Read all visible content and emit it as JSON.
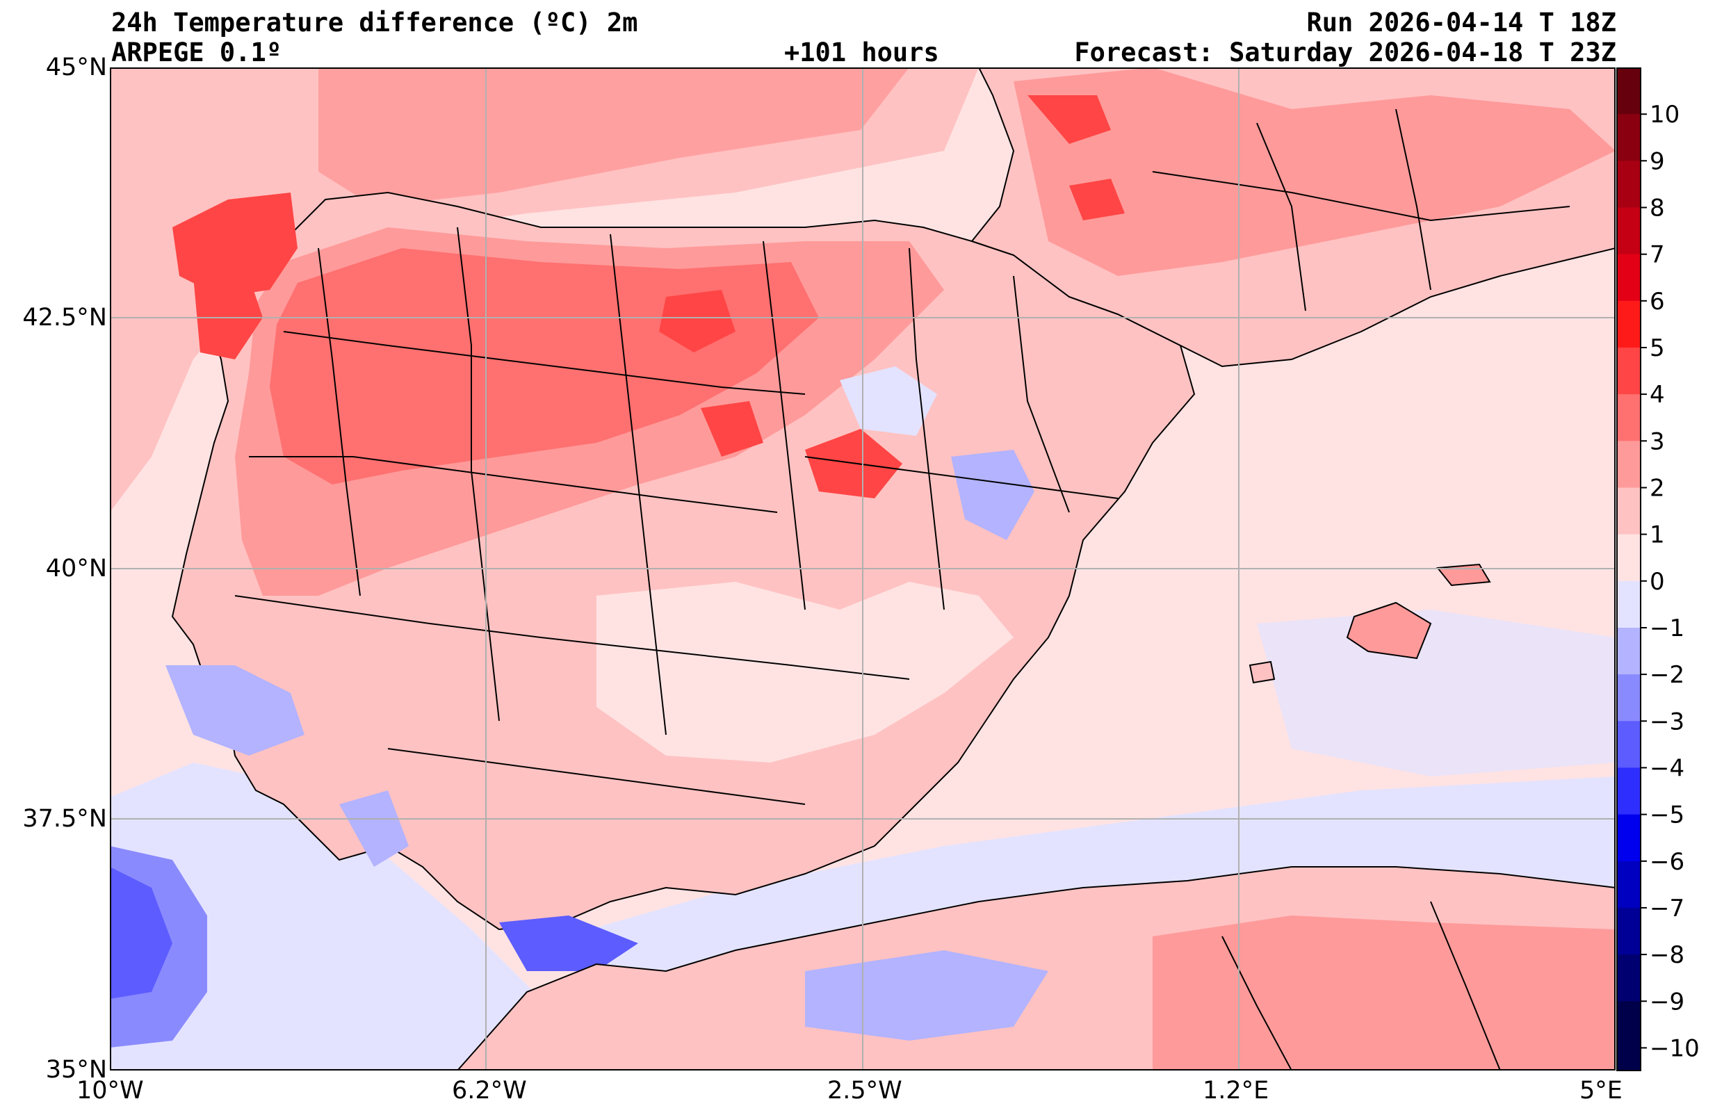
{
  "header": {
    "title": "24h Temperature difference (ºC) 2m",
    "model": "ARPEGE 0.1º",
    "lead_time": "+101 hours",
    "run": "Run 2026-04-14 T 18Z",
    "forecast": "Forecast: Saturday 2026-04-18 T 23Z"
  },
  "axes": {
    "lat_labels": [
      "45°N",
      "42.5°N",
      "40°N",
      "37.5°N",
      "35°N"
    ],
    "lon_labels": [
      "10°W",
      "6.2°W",
      "2.5°W",
      "1.2°E",
      "5°E"
    ]
  },
  "colorbar": {
    "labels": [
      "10",
      "9",
      "8",
      "7",
      "6",
      "5",
      "4",
      "3",
      "2",
      "1",
      "0",
      "−1",
      "−2",
      "−3",
      "−4",
      "−5",
      "−6",
      "−7",
      "−8",
      "−9",
      "−10"
    ],
    "colors": [
      "#67000d",
      "#8a0010",
      "#a80012",
      "#c60014",
      "#e30016",
      "#ff1a1a",
      "#ff4545",
      "#ff7070",
      "#ff9a9a",
      "#ffc2c2",
      "#ffe3e3",
      "#e3e3ff",
      "#b3b3ff",
      "#8a8aff",
      "#5c5cff",
      "#2e2eff",
      "#0000ee",
      "#0000c0",
      "#000096",
      "#000070",
      "#00004a"
    ]
  },
  "palette": {
    "sea_hi": "#ffb5b5",
    "sea_base": "#ffe3e3",
    "sea_cold": "#e3e3ff"
  }
}
